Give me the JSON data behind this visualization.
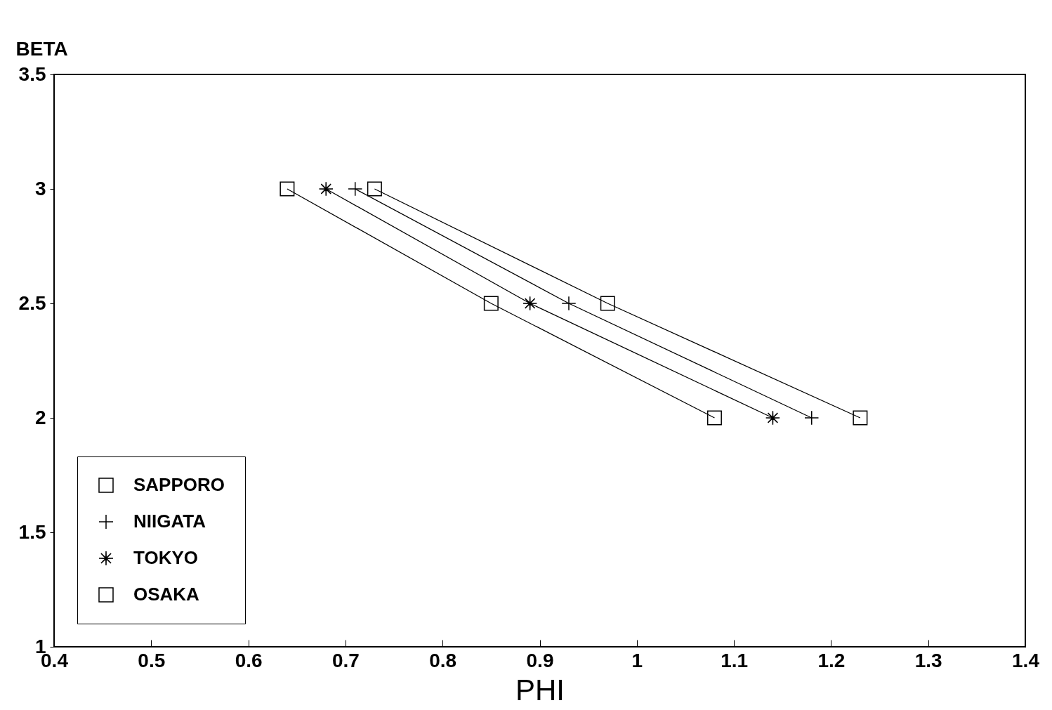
{
  "chart_data": {
    "type": "line",
    "xlabel": "PHI",
    "ylabel": "BETA",
    "xlim": [
      0.4,
      1.4
    ],
    "xticks": [
      0.4,
      0.5,
      0.6,
      0.7,
      0.8,
      0.9,
      1,
      1.1,
      1.2,
      1.3,
      1.4
    ],
    "ylim": [
      1,
      3.5
    ],
    "yticks": [
      1,
      1.5,
      2,
      2.5,
      3,
      3.5
    ],
    "grid": false,
    "legend": "bottom left",
    "line_style": "solid",
    "series": [
      {
        "name": "SAPPORO",
        "color": "#000000",
        "marker": "square",
        "x": [
          0.73,
          0.97,
          1.23
        ],
        "values": [
          3,
          2.5,
          2
        ]
      },
      {
        "name": "NIIGATA",
        "color": "#000000",
        "marker": "cross",
        "x": [
          0.71,
          0.93,
          1.18
        ],
        "values": [
          3,
          2.5,
          2
        ]
      },
      {
        "name": "TOKYO",
        "color": "#000000",
        "marker": "star",
        "x": [
          0.68,
          0.89,
          1.14
        ],
        "values": [
          3,
          2.5,
          2
        ]
      },
      {
        "name": "OSAKA",
        "color": "#000000",
        "marker": "square",
        "x": [
          0.64,
          0.85,
          1.08
        ],
        "values": [
          3,
          2.5,
          2
        ]
      }
    ]
  }
}
